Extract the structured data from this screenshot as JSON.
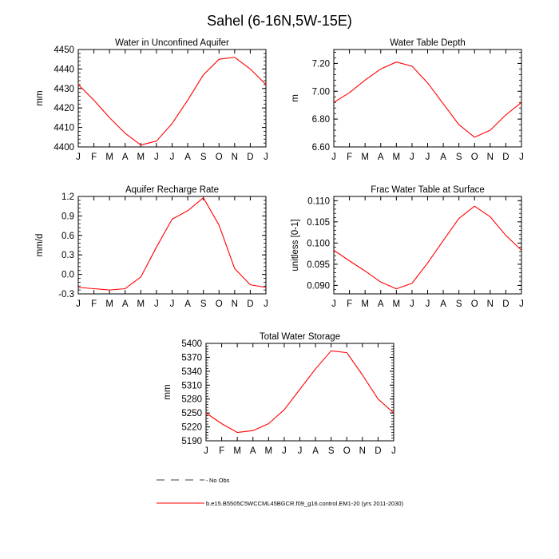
{
  "figure": {
    "title": "Sahel (6-16N,5W-15E)",
    "months": [
      "J",
      "F",
      "M",
      "A",
      "M",
      "J",
      "J",
      "A",
      "S",
      "O",
      "N",
      "D",
      "J"
    ],
    "line_color": "#ff0000",
    "legend": {
      "obs_label": "No Obs",
      "model_label": "b.e15.B5505C5WCCML45BGCR.f09_g16.control.EM1-20 (yrs 2011-2030)"
    }
  },
  "chart_data": [
    {
      "type": "line",
      "title": "Water in Unconfined Aquifer",
      "ylabel": "mm",
      "ylim": [
        4400,
        4450
      ],
      "yticks": [
        4400,
        4410,
        4420,
        4430,
        4440,
        4450
      ],
      "ytick_labels": [
        "4400",
        "4410",
        "4420",
        "4430",
        "4440",
        "4450"
      ],
      "values": [
        4432,
        4424,
        4415,
        4407,
        4401,
        4403,
        4412,
        4424,
        4437,
        4445,
        4446,
        4440,
        4432
      ]
    },
    {
      "type": "line",
      "title": "Water Table Depth",
      "ylabel": "m",
      "ylim": [
        6.6,
        7.3
      ],
      "yticks": [
        6.6,
        6.8,
        7.0,
        7.2
      ],
      "ytick_labels": [
        "6.60",
        "6.80",
        "7.00",
        "7.20"
      ],
      "values": [
        6.92,
        6.99,
        7.08,
        7.16,
        7.21,
        7.18,
        7.06,
        6.91,
        6.76,
        6.67,
        6.72,
        6.83,
        6.92
      ]
    },
    {
      "type": "line",
      "title": "Aquifer Recharge Rate",
      "ylabel": "mm/d",
      "ylim": [
        -0.3,
        1.2
      ],
      "yticks": [
        -0.3,
        0.0,
        0.3,
        0.6,
        0.9,
        1.2
      ],
      "ytick_labels": [
        "-0.3",
        "0.0",
        "0.3",
        "0.6",
        "0.9",
        "1.2"
      ],
      "values": [
        -0.2,
        -0.22,
        -0.24,
        -0.22,
        -0.04,
        0.42,
        0.85,
        0.98,
        1.18,
        0.76,
        0.09,
        -0.16,
        -0.2
      ]
    },
    {
      "type": "line",
      "title": "Frac Water Table at Surface",
      "ylabel": "unitless [0-1]",
      "ylim": [
        0.088,
        0.111
      ],
      "yticks": [
        0.09,
        0.095,
        0.1,
        0.105,
        0.11
      ],
      "ytick_labels": [
        "0.090",
        "0.095",
        "0.100",
        "0.105",
        "0.110"
      ],
      "values": [
        0.0983,
        0.0958,
        0.0934,
        0.0908,
        0.0892,
        0.0905,
        0.0953,
        0.1006,
        0.1058,
        0.1087,
        0.1062,
        0.1018,
        0.0983
      ]
    },
    {
      "type": "line",
      "title": "Total Water Storage",
      "ylabel": "mm",
      "ylim": [
        5190,
        5400
      ],
      "yticks": [
        5190,
        5220,
        5250,
        5280,
        5310,
        5340,
        5370,
        5400
      ],
      "ytick_labels": [
        "5190",
        "5220",
        "5250",
        "5280",
        "5310",
        "5340",
        "5370",
        "5400"
      ],
      "values": [
        5250,
        5227,
        5208,
        5212,
        5227,
        5257,
        5301,
        5345,
        5384,
        5380,
        5332,
        5280,
        5250
      ]
    }
  ]
}
